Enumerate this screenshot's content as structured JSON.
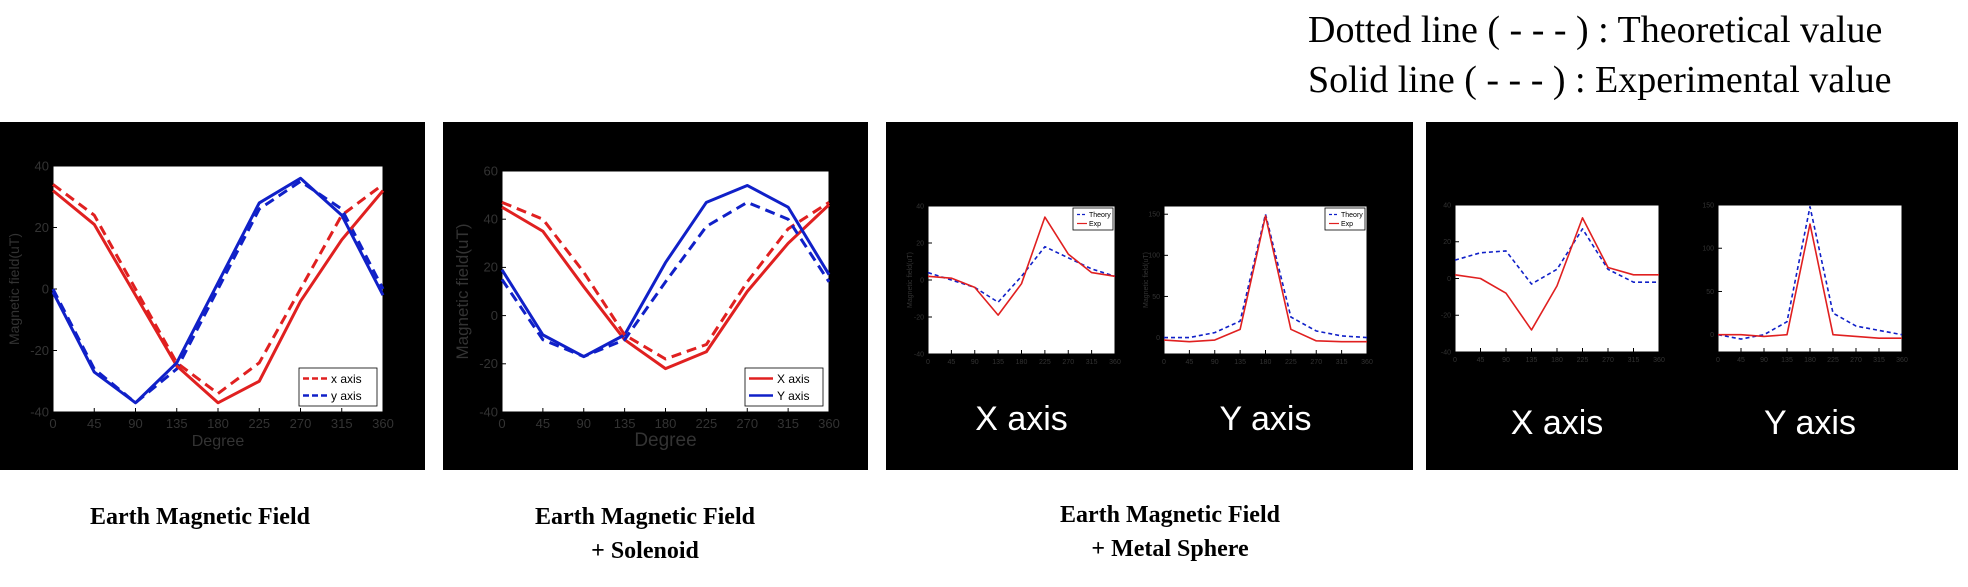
{
  "notes": {
    "dotted": "Dotted line ( - - - ) : Theoretical value",
    "solid": "Solid line ( - - - ) : Experimental value"
  },
  "captions": {
    "earth": "Earth Magnetic Field",
    "solenoid_line1": "Earth Magnetic Field",
    "solenoid_line2": "+  Solenoid",
    "sphere_line1": "Earth Magnetic Field",
    "sphere_line2": "+  Metal Sphere"
  },
  "colors": {
    "red": "#e02020",
    "blue": "#1020c8",
    "panel_bg": "#000000",
    "axis_text_dim": "#333333"
  },
  "chart_data": [
    {
      "id": "earth",
      "type": "line",
      "xlabel": "Degree",
      "ylabel": "Magnetic field(uT)",
      "xlim": [
        0,
        360
      ],
      "ylim": [
        -40,
        40
      ],
      "xticks": [
        0,
        45,
        90,
        135,
        180,
        225,
        270,
        315,
        360
      ],
      "yticks": [
        -40,
        -20,
        0,
        20,
        40
      ],
      "x": [
        0,
        45,
        90,
        135,
        180,
        225,
        270,
        315,
        360
      ],
      "legend": {
        "position": "bottom-right",
        "entries": [
          "x axis",
          "y axis"
        ]
      },
      "series": [
        {
          "name": "x axis",
          "color": "red",
          "dash": true,
          "values": [
            34,
            24,
            0,
            -24,
            -34,
            -24,
            0,
            24,
            34
          ]
        },
        {
          "name": "y axis",
          "color": "blue",
          "dash": true,
          "values": [
            0,
            -26,
            -37,
            -26,
            0,
            26,
            35,
            26,
            0
          ]
        },
        {
          "name": "",
          "color": "red",
          "dash": false,
          "values": [
            32,
            21,
            -2,
            -25,
            -37,
            -30,
            -4,
            16,
            32
          ]
        },
        {
          "name": "",
          "color": "blue",
          "dash": false,
          "values": [
            -1,
            -27,
            -37,
            -24,
            2,
            28,
            36,
            24,
            -2
          ]
        }
      ]
    },
    {
      "id": "solenoid",
      "type": "line",
      "xlabel": "Degree",
      "ylabel": "Magnetic field(uT)",
      "xlim": [
        0,
        360
      ],
      "ylim": [
        -40,
        60
      ],
      "xticks": [
        0,
        45,
        90,
        135,
        180,
        225,
        270,
        315,
        360
      ],
      "yticks": [
        -40,
        -20,
        0,
        20,
        40,
        60
      ],
      "x": [
        0,
        45,
        90,
        135,
        180,
        225,
        270,
        315,
        360
      ],
      "legend": {
        "position": "bottom-right",
        "entries": [
          "X axis",
          "Y axis"
        ]
      },
      "series": [
        {
          "name": "X axis",
          "color": "red",
          "dash": false,
          "values": [
            45,
            35,
            12,
            -10,
            -22,
            -15,
            10,
            30,
            46
          ]
        },
        {
          "name": "Y axis",
          "color": "blue",
          "dash": false,
          "values": [
            19,
            -8,
            -17,
            -8,
            22,
            47,
            54,
            45,
            17
          ]
        },
        {
          "name": "",
          "color": "red",
          "dash": true,
          "values": [
            47,
            40,
            18,
            -8,
            -18,
            -12,
            14,
            36,
            47
          ]
        },
        {
          "name": "",
          "color": "blue",
          "dash": true,
          "values": [
            15,
            -10,
            -17,
            -10,
            14,
            37,
            47,
            40,
            14
          ]
        }
      ]
    },
    {
      "id": "sphere_x",
      "type": "line",
      "xlabel": "",
      "ylabel": "Magnetic field(uT)",
      "xlim": [
        0,
        360
      ],
      "ylim": [
        -40,
        40
      ],
      "xticks": [
        0,
        45,
        90,
        135,
        180,
        225,
        270,
        315,
        360
      ],
      "yticks": [
        -40,
        -20,
        0,
        20,
        40
      ],
      "x": [
        0,
        45,
        90,
        135,
        180,
        225,
        270,
        315,
        360
      ],
      "axis_label": "X axis",
      "legend": {
        "position": "top-right",
        "entries": [
          "Theory",
          "Exp"
        ]
      },
      "series": [
        {
          "name": "Theory",
          "color": "blue",
          "dash": true,
          "values": [
            4,
            0,
            -4,
            -12,
            2,
            18,
            12,
            6,
            2
          ]
        },
        {
          "name": "Exp",
          "color": "red",
          "dash": false,
          "values": [
            2,
            1,
            -4,
            -19,
            -2,
            34,
            14,
            4,
            2
          ]
        }
      ]
    },
    {
      "id": "sphere_y",
      "type": "line",
      "xlabel": "",
      "ylabel": "Magnetic field(uT)",
      "xlim": [
        0,
        360
      ],
      "ylim": [
        -20,
        160
      ],
      "xticks": [
        0,
        45,
        90,
        135,
        180,
        225,
        270,
        315,
        360
      ],
      "yticks": [
        0,
        50,
        100,
        150
      ],
      "x": [
        0,
        45,
        90,
        135,
        180,
        225,
        270,
        315,
        360
      ],
      "axis_label": "Y axis",
      "legend": {
        "position": "top-right",
        "entries": [
          "Theory",
          "Exp"
        ]
      },
      "series": [
        {
          "name": "Theory",
          "color": "blue",
          "dash": true,
          "values": [
            0,
            0,
            6,
            20,
            150,
            25,
            8,
            2,
            0
          ]
        },
        {
          "name": "Exp",
          "color": "red",
          "dash": false,
          "values": [
            -3,
            -5,
            -3,
            10,
            148,
            10,
            -4,
            -5,
            -5
          ]
        }
      ]
    },
    {
      "id": "sphere2_x",
      "type": "line",
      "xlabel": "",
      "ylabel": "",
      "xlim": [
        0,
        360
      ],
      "ylim": [
        -40,
        40
      ],
      "xticks": [
        0,
        45,
        90,
        135,
        180,
        225,
        270,
        315,
        360
      ],
      "yticks": [
        -40,
        -20,
        0,
        20,
        40
      ],
      "x": [
        0,
        45,
        90,
        135,
        180,
        225,
        270,
        315,
        360
      ],
      "axis_label": "X axis",
      "legend": null,
      "series": [
        {
          "name": "",
          "color": "blue",
          "dash": true,
          "values": [
            10,
            14,
            15,
            -3,
            5,
            27,
            5,
            -2,
            -2
          ]
        },
        {
          "name": "",
          "color": "red",
          "dash": false,
          "values": [
            2,
            0,
            -8,
            -28,
            -4,
            33,
            6,
            2,
            2
          ]
        }
      ]
    },
    {
      "id": "sphere2_y",
      "type": "line",
      "xlabel": "",
      "ylabel": "",
      "xlim": [
        0,
        360
      ],
      "ylim": [
        -20,
        150
      ],
      "xticks": [
        0,
        45,
        90,
        135,
        180,
        225,
        270,
        315,
        360
      ],
      "yticks": [
        0,
        50,
        100,
        150
      ],
      "x": [
        0,
        45,
        90,
        135,
        180,
        225,
        270,
        315,
        360
      ],
      "axis_label": "Y axis",
      "legend": null,
      "series": [
        {
          "name": "",
          "color": "blue",
          "dash": true,
          "values": [
            0,
            -5,
            0,
            15,
            148,
            25,
            10,
            5,
            0
          ]
        },
        {
          "name": "",
          "color": "red",
          "dash": false,
          "values": [
            0,
            0,
            -2,
            0,
            128,
            0,
            -2,
            -4,
            -4
          ]
        }
      ]
    }
  ]
}
